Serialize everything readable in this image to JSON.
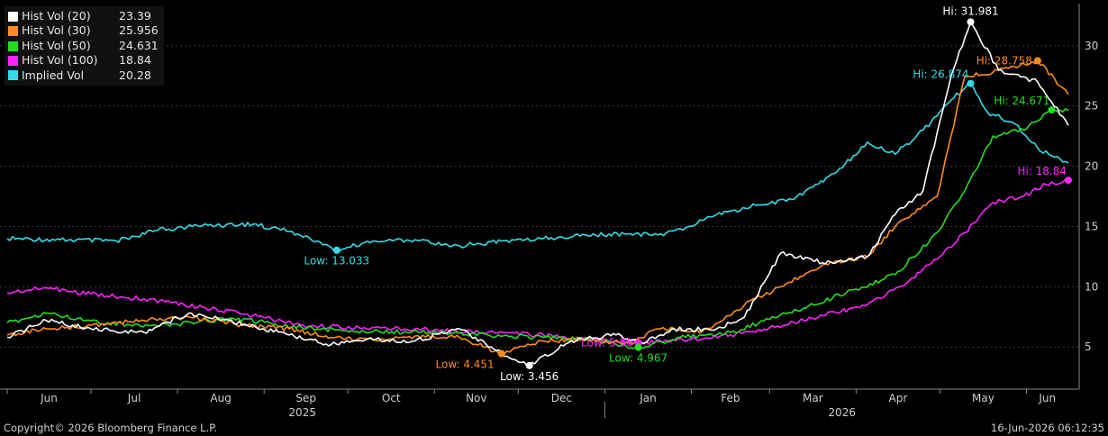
{
  "legend": [
    {
      "name": "Hist Vol (20)",
      "value": "23.39",
      "color": "#ffffff"
    },
    {
      "name": "Hist Vol (30)",
      "value": "25.956",
      "color": "#ff8c1a"
    },
    {
      "name": "Hist Vol (50)",
      "value": "24.631",
      "color": "#22dd22"
    },
    {
      "name": "Hist Vol (100)",
      "value": "18.84",
      "color": "#ff22ff"
    },
    {
      "name": "Implied Vol",
      "value": "20.28",
      "color": "#33dde8"
    }
  ],
  "footer": {
    "copyright": "Copyright© 2026 Bloomberg Finance L.P.",
    "timestamp": "16-Jun-2026 06:12:35"
  },
  "chart_data": {
    "type": "line",
    "ylim": [
      1.5,
      33.5
    ],
    "yticks": [
      5,
      10,
      15,
      20,
      25,
      30
    ],
    "axis_side": "right",
    "grid": true,
    "legend_position": "top-left",
    "x_month_labels": [
      "Jun",
      "Jul",
      "Aug",
      "Sep",
      "Oct",
      "Nov",
      "Dec",
      "Jan",
      "Feb",
      "Mar",
      "Apr",
      "May",
      "Jun"
    ],
    "year_labels": [
      "2025",
      "2026"
    ],
    "x_range": [
      "2025-06-01",
      "2026-06-16"
    ],
    "series": [
      {
        "name": "Implied Vol",
        "color": "#33dde8",
        "points": [
          [
            "2025-06-01",
            14.0
          ],
          [
            "2025-06-20",
            13.9
          ],
          [
            "2025-07-10",
            13.8
          ],
          [
            "2025-07-25",
            14.7
          ],
          [
            "2025-08-10",
            15.1
          ],
          [
            "2025-08-28",
            15.2
          ],
          [
            "2025-09-10",
            14.6
          ],
          [
            "2025-09-20",
            13.8
          ],
          [
            "2025-09-27",
            13.033
          ],
          [
            "2025-10-10",
            13.8
          ],
          [
            "2025-10-25",
            13.9
          ],
          [
            "2025-11-10",
            13.4
          ],
          [
            "2025-11-25",
            13.8
          ],
          [
            "2025-12-10",
            14.0
          ],
          [
            "2025-12-25",
            14.3
          ],
          [
            "2026-01-10",
            14.4
          ],
          [
            "2026-01-20",
            14.3
          ],
          [
            "2026-01-31",
            15.0
          ],
          [
            "2026-02-10",
            16.0
          ],
          [
            "2026-02-25",
            16.8
          ],
          [
            "2026-03-10",
            17.3
          ],
          [
            "2026-03-25",
            19.5
          ],
          [
            "2026-04-05",
            22.0
          ],
          [
            "2026-04-15",
            21.0
          ],
          [
            "2026-04-25",
            23.0
          ],
          [
            "2026-05-05",
            25.5
          ],
          [
            "2026-05-12",
            26.874
          ],
          [
            "2026-05-18",
            24.5
          ],
          [
            "2026-05-28",
            23.5
          ],
          [
            "2026-06-05",
            21.5
          ],
          [
            "2026-06-16",
            20.28
          ]
        ]
      },
      {
        "name": "Hist Vol (100)",
        "color": "#ff22ff",
        "points": [
          [
            "2025-06-01",
            9.5
          ],
          [
            "2025-06-15",
            9.9
          ],
          [
            "2025-07-01",
            9.4
          ],
          [
            "2025-07-20",
            9.0
          ],
          [
            "2025-08-10",
            8.3
          ],
          [
            "2025-08-28",
            7.6
          ],
          [
            "2025-09-15",
            6.8
          ],
          [
            "2025-10-05",
            6.6
          ],
          [
            "2025-10-25",
            6.5
          ],
          [
            "2025-11-20",
            6.2
          ],
          [
            "2025-12-10",
            6.0
          ],
          [
            "2025-12-25",
            5.7
          ],
          [
            "2026-01-13",
            5.36
          ],
          [
            "2026-01-31",
            5.6
          ],
          [
            "2026-02-15",
            6.0
          ],
          [
            "2026-03-01",
            6.6
          ],
          [
            "2026-03-20",
            7.6
          ],
          [
            "2026-04-05",
            8.5
          ],
          [
            "2026-04-20",
            10.5
          ],
          [
            "2026-05-01",
            12.5
          ],
          [
            "2026-05-10",
            14.5
          ],
          [
            "2026-05-20",
            17.0
          ],
          [
            "2026-05-31",
            17.5
          ],
          [
            "2026-06-08",
            18.5
          ],
          [
            "2026-06-16",
            18.84
          ]
        ]
      },
      {
        "name": "Hist Vol (50)",
        "color": "#22dd22",
        "points": [
          [
            "2025-06-01",
            7.0
          ],
          [
            "2025-06-15",
            7.8
          ],
          [
            "2025-07-01",
            7.2
          ],
          [
            "2025-07-15",
            6.8
          ],
          [
            "2025-08-01",
            6.9
          ],
          [
            "2025-08-20",
            7.4
          ],
          [
            "2025-09-05",
            6.9
          ],
          [
            "2025-09-20",
            6.5
          ],
          [
            "2025-10-10",
            6.3
          ],
          [
            "2025-10-30",
            6.2
          ],
          [
            "2025-11-20",
            6.0
          ],
          [
            "2025-12-10",
            5.8
          ],
          [
            "2025-12-28",
            5.6
          ],
          [
            "2026-01-13",
            4.967
          ],
          [
            "2026-01-28",
            5.8
          ],
          [
            "2026-02-15",
            6.2
          ],
          [
            "2026-03-01",
            7.3
          ],
          [
            "2026-03-15",
            8.4
          ],
          [
            "2026-04-01",
            9.8
          ],
          [
            "2026-04-15",
            11.0
          ],
          [
            "2026-04-30",
            14.5
          ],
          [
            "2026-05-10",
            18.0
          ],
          [
            "2026-05-20",
            22.5
          ],
          [
            "2026-05-31",
            23.0
          ],
          [
            "2026-06-10",
            24.671
          ],
          [
            "2026-06-16",
            24.631
          ]
        ]
      },
      {
        "name": "Hist Vol (30)",
        "color": "#ff8c1a",
        "points": [
          [
            "2025-06-01",
            6.0
          ],
          [
            "2025-06-15",
            6.5
          ],
          [
            "2025-07-01",
            6.8
          ],
          [
            "2025-07-20",
            7.2
          ],
          [
            "2025-08-05",
            7.5
          ],
          [
            "2025-08-25",
            6.8
          ],
          [
            "2025-09-10",
            6.5
          ],
          [
            "2025-09-25",
            5.8
          ],
          [
            "2025-10-10",
            5.6
          ],
          [
            "2025-10-25",
            5.9
          ],
          [
            "2025-11-10",
            5.8
          ],
          [
            "2025-11-25",
            4.451
          ],
          [
            "2025-12-10",
            5.5
          ],
          [
            "2025-12-25",
            5.6
          ],
          [
            "2026-01-10",
            5.3
          ],
          [
            "2026-01-20",
            6.5
          ],
          [
            "2026-02-05",
            6.3
          ],
          [
            "2026-02-20",
            8.5
          ],
          [
            "2026-03-05",
            10.0
          ],
          [
            "2026-03-20",
            11.8
          ],
          [
            "2026-04-05",
            12.5
          ],
          [
            "2026-04-15",
            15.0
          ],
          [
            "2026-04-30",
            17.5
          ],
          [
            "2026-05-10",
            27.5
          ],
          [
            "2026-05-20",
            27.8
          ],
          [
            "2026-06-05",
            28.758
          ],
          [
            "2026-06-16",
            25.956
          ]
        ]
      },
      {
        "name": "Hist Vol (20)",
        "color": "#ffffff",
        "points": [
          [
            "2025-06-01",
            5.8
          ],
          [
            "2025-06-15",
            7.2
          ],
          [
            "2025-07-01",
            6.5
          ],
          [
            "2025-07-20",
            6.2
          ],
          [
            "2025-08-05",
            7.8
          ],
          [
            "2025-08-25",
            6.9
          ],
          [
            "2025-09-10",
            6.0
          ],
          [
            "2025-09-25",
            5.2
          ],
          [
            "2025-10-10",
            5.6
          ],
          [
            "2025-10-25",
            5.5
          ],
          [
            "2025-11-10",
            6.5
          ],
          [
            "2025-11-25",
            4.5
          ],
          [
            "2025-12-05",
            3.456
          ],
          [
            "2025-12-20",
            5.5
          ],
          [
            "2026-01-05",
            6.0
          ],
          [
            "2026-01-15",
            5.3
          ],
          [
            "2026-01-25",
            6.5
          ],
          [
            "2026-02-10",
            6.5
          ],
          [
            "2026-02-20",
            7.5
          ],
          [
            "2026-03-05",
            12.8
          ],
          [
            "2026-03-20",
            12.0
          ],
          [
            "2026-04-05",
            12.5
          ],
          [
            "2026-04-15",
            16.0
          ],
          [
            "2026-04-25",
            18.0
          ],
          [
            "2026-05-05",
            27.5
          ],
          [
            "2026-05-12",
            31.981
          ],
          [
            "2026-05-22",
            28.0
          ],
          [
            "2026-06-05",
            27.0
          ],
          [
            "2026-06-16",
            23.39
          ]
        ]
      }
    ],
    "annotations": [
      {
        "series": "Implied Vol",
        "label": "Low: 13.033",
        "date": "2025-09-27",
        "value": 13.033,
        "color": "#33dde8",
        "pos": "below"
      },
      {
        "series": "Hist Vol (30)",
        "label": "Low: 4.451",
        "date": "2025-11-25",
        "value": 4.451,
        "color": "#ff8c1a",
        "pos": "below-left"
      },
      {
        "series": "Hist Vol (20)",
        "label": "Low: 3.456",
        "date": "2025-12-05",
        "value": 3.456,
        "color": "#ffffff",
        "pos": "below"
      },
      {
        "series": "Hist Vol (100)",
        "label": "Low: 5.36",
        "date": "2026-01-13",
        "value": 5.36,
        "color": "#ff22ff",
        "pos": "left"
      },
      {
        "series": "Hist Vol (50)",
        "label": "Low: 4.967",
        "date": "2026-01-13",
        "value": 4.967,
        "color": "#22dd22",
        "pos": "below"
      },
      {
        "series": "Hist Vol (20)",
        "label": "Hi: 31.981",
        "date": "2026-05-12",
        "value": 31.981,
        "color": "#ffffff",
        "pos": "above"
      },
      {
        "series": "Hist Vol (30)",
        "label": "Hi: 28.758",
        "date": "2026-06-05",
        "value": 28.758,
        "color": "#ff8c1a",
        "pos": "left"
      },
      {
        "series": "Implied Vol",
        "label": "Hi: 26.874",
        "date": "2026-05-12",
        "value": 26.874,
        "color": "#33dde8",
        "pos": "above-left"
      },
      {
        "series": "Hist Vol (50)",
        "label": "Hi: 24.671",
        "date": "2026-06-10",
        "value": 24.671,
        "color": "#22dd22",
        "pos": "above-left"
      },
      {
        "series": "Hist Vol (100)",
        "label": "Hi: 18.84",
        "date": "2026-06-16",
        "value": 18.84,
        "color": "#ff22ff",
        "pos": "above-left"
      }
    ]
  }
}
